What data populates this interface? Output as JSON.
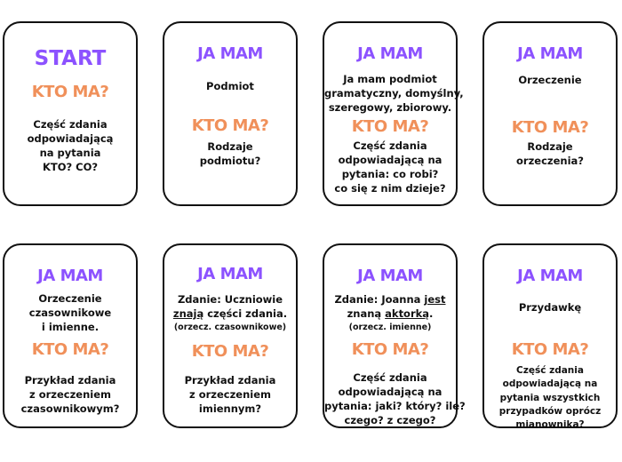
{
  "colors": {
    "heading": "#8c52ff",
    "question": "#f0905a",
    "text": "#111111",
    "border": "#111111"
  },
  "cards": [
    {
      "heading": "START",
      "question": "KTO MA?",
      "answer_lines": [],
      "ask_lines": [
        "Część zdania",
        "odpowiadającą",
        "na pytania",
        "KTO? CO?"
      ]
    },
    {
      "heading": "JA MAM",
      "question": "KTO MA?",
      "answer_lines": [
        "Podmiot"
      ],
      "ask_lines": [
        "Rodzaje",
        "podmiotu?"
      ]
    },
    {
      "heading": "JA MAM",
      "question": "KTO MA?",
      "answer_lines": [
        "Ja mam podmiot",
        "gramatyczny, domyślny,",
        "szeregowy, zbiorowy."
      ],
      "ask_lines": [
        "Część zdania",
        "odpowiadającą na",
        "pytania: co robi?",
        "co się z nim dzieje?"
      ]
    },
    {
      "heading": "JA MAM",
      "question": "KTO MA?",
      "answer_lines": [
        "Orzeczenie"
      ],
      "ask_lines": [
        "Rodzaje",
        "orzeczenia?"
      ]
    },
    {
      "heading": "JA MAM",
      "question": "KTO MA?",
      "answer_lines": [
        "Orzeczenie",
        "czasownikowe",
        "i imienne."
      ],
      "ask_lines": [
        "Przykład zdania",
        "z orzeczeniem",
        "czasownikowym?"
      ]
    },
    {
      "heading": "JA MAM",
      "question": "KTO MA?",
      "answer": {
        "l1": "Zdanie: Uczniowie",
        "l2_u": "znają",
        "l2_rest": " części zdania.",
        "note": "(orzecz. czasownikowe)"
      },
      "ask_lines": [
        "Przykład zdania",
        "z orzeczeniem",
        "imiennym?"
      ]
    },
    {
      "heading": "JA MAM",
      "question": "KTO MA?",
      "answer": {
        "l1_a": "Zdanie: Joanna ",
        "l1_u": "jest",
        "l2_a": "znaną ",
        "l2_u": "aktorką",
        "l2_b": ".",
        "note": "(orzecz. imienne)"
      },
      "ask_lines": [
        "Część zdania",
        "odpowiadającą na",
        "pytania: jaki? który? ile?",
        "czego? z czego?"
      ]
    },
    {
      "heading": "JA MAM",
      "question": "KTO MA?",
      "answer_lines": [
        "Przydawkę"
      ],
      "ask_lines": [
        "Część zdania",
        "odpowiadającą na",
        "pytania wszystkich",
        "przypadków oprócz",
        "mianownika?"
      ]
    }
  ]
}
